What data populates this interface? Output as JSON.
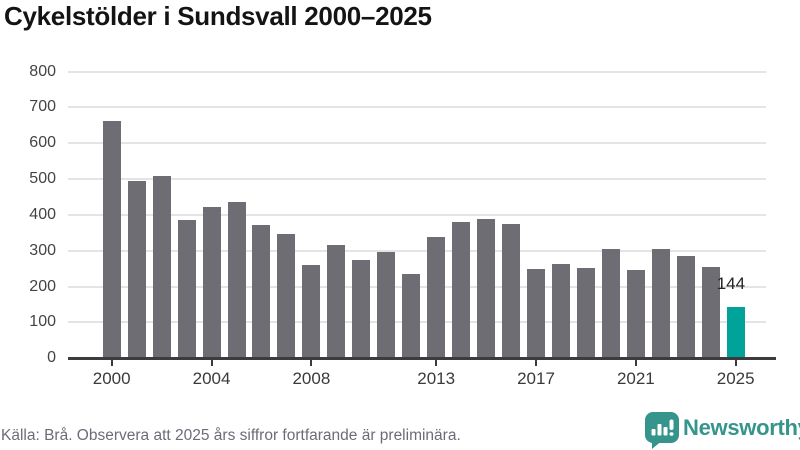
{
  "chart_data": {
    "type": "bar",
    "title": "Cykelstölder i Sundsvall 2000–2025",
    "categories": [
      2000,
      2001,
      2002,
      2003,
      2004,
      2005,
      2006,
      2007,
      2008,
      2009,
      2010,
      2011,
      2012,
      2013,
      2014,
      2015,
      2016,
      2017,
      2018,
      2019,
      2020,
      2021,
      2022,
      2023,
      2024,
      2025
    ],
    "values": [
      662,
      495,
      510,
      387,
      423,
      437,
      372,
      347,
      261,
      317,
      274,
      297,
      236,
      339,
      381,
      390,
      374,
      250,
      262,
      253,
      306,
      245,
      304,
      286,
      256,
      144
    ],
    "xlabel": "",
    "ylabel": "",
    "ylim": [
      0,
      800
    ],
    "yticks": [
      0,
      100,
      200,
      300,
      400,
      500,
      600,
      700,
      800
    ],
    "xtick_years": [
      2000,
      2004,
      2008,
      2013,
      2017,
      2021,
      2025
    ],
    "grid": true,
    "legend": "none",
    "bar_color": "#6E6D73",
    "highlight": {
      "year": 2025,
      "value": 144,
      "label": "144",
      "color": "#00A39A"
    }
  },
  "footer": {
    "source": "Källa: Brå. Observera att 2025 års siffror fortfarande är preliminära.",
    "brand": "Newsworthy",
    "brand_color": "#35948C"
  }
}
